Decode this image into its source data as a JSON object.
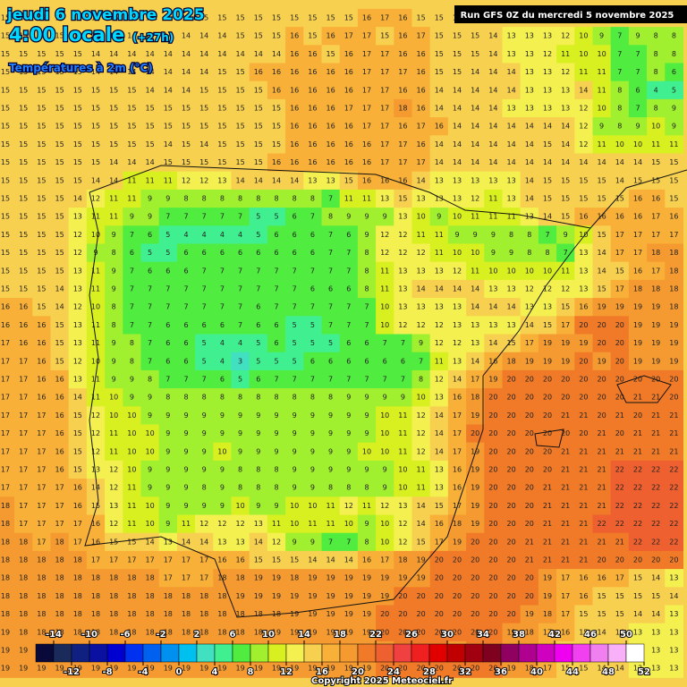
{
  "header": {
    "date": "jeudi 6 novembre 2025",
    "time": "4:00 locale",
    "offset": "(+27h)",
    "variable": "Températures à 2m (°C)",
    "run": "Run GFS 0Z du mercredi 5 novembre 2025"
  },
  "legend": {
    "top_labels": [
      -14,
      -10,
      -6,
      -2,
      2,
      6,
      10,
      14,
      18,
      22,
      26,
      30,
      34,
      38,
      42,
      46,
      50
    ],
    "bottom_labels": [
      -12,
      -8,
      -4,
      0,
      4,
      8,
      12,
      16,
      20,
      24,
      28,
      32,
      36,
      40,
      44,
      48,
      52
    ],
    "colors": [
      "#0a0a3a",
      "#1a2a5a",
      "#102080",
      "#0a10a0",
      "#0000d0",
      "#0030f0",
      "#0060f0",
      "#0090f0",
      "#00c0f0",
      "#40e0c0",
      "#40f090",
      "#50ec40",
      "#a0f030",
      "#d8f020",
      "#f4f050",
      "#f8d050",
      "#f8b038",
      "#f59a30",
      "#f07a28",
      "#ee6030",
      "#f04040",
      "#f02020",
      "#e00000",
      "#c00000",
      "#a00010",
      "#800020",
      "#900060",
      "#b00090",
      "#d000c0",
      "#f000f0",
      "#f040f0",
      "#f080f0",
      "#f8b0f8",
      "#ffffff"
    ]
  },
  "grid": {
    "rows": [
      [
        15,
        15,
        15,
        15,
        15,
        15,
        15,
        15,
        15,
        15,
        15,
        15,
        15,
        15,
        15,
        15,
        15,
        15,
        15,
        15,
        16,
        17,
        16,
        15,
        15,
        15,
        15,
        15,
        15,
        15,
        15,
        15,
        15,
        15,
        15,
        15,
        15,
        15
      ],
      [
        15,
        15,
        15,
        15,
        15,
        14,
        14,
        14,
        14,
        14,
        14,
        14,
        14,
        15,
        15,
        15,
        16,
        15,
        16,
        17,
        17,
        15,
        16,
        17,
        15,
        15,
        15,
        14,
        13,
        13,
        13,
        12,
        10,
        9,
        7,
        9,
        8,
        8
      ],
      [
        15,
        15,
        15,
        15,
        15,
        14,
        14,
        14,
        14,
        14,
        14,
        14,
        14,
        14,
        14,
        14,
        16,
        16,
        15,
        16,
        17,
        17,
        16,
        16,
        15,
        15,
        15,
        14,
        13,
        13,
        12,
        11,
        10,
        10,
        7,
        7,
        8,
        8
      ],
      [
        15,
        15,
        15,
        15,
        15,
        14,
        14,
        14,
        14,
        14,
        14,
        14,
        15,
        15,
        16,
        16,
        16,
        16,
        16,
        16,
        17,
        17,
        17,
        16,
        15,
        15,
        14,
        14,
        14,
        13,
        13,
        12,
        11,
        11,
        7,
        7,
        8,
        6
      ],
      [
        15,
        15,
        15,
        15,
        15,
        15,
        15,
        15,
        14,
        14,
        14,
        15,
        15,
        15,
        15,
        16,
        16,
        16,
        16,
        16,
        17,
        17,
        16,
        16,
        14,
        14,
        14,
        14,
        14,
        13,
        13,
        13,
        14,
        11,
        8,
        6,
        4,
        5
      ],
      [
        15,
        15,
        15,
        15,
        15,
        15,
        15,
        15,
        15,
        15,
        15,
        15,
        15,
        15,
        15,
        15,
        16,
        16,
        16,
        17,
        17,
        17,
        18,
        16,
        14,
        14,
        14,
        14,
        13,
        13,
        13,
        13,
        12,
        10,
        8,
        7,
        8,
        9
      ],
      [
        15,
        15,
        15,
        15,
        15,
        15,
        15,
        15,
        15,
        15,
        15,
        15,
        15,
        15,
        15,
        15,
        16,
        16,
        16,
        16,
        17,
        17,
        16,
        17,
        16,
        14,
        14,
        14,
        14,
        14,
        14,
        14,
        12,
        9,
        8,
        9,
        10,
        9
      ],
      [
        15,
        15,
        15,
        15,
        15,
        15,
        15,
        15,
        15,
        14,
        15,
        14,
        15,
        15,
        15,
        15,
        16,
        16,
        16,
        16,
        16,
        17,
        17,
        16,
        14,
        14,
        14,
        14,
        14,
        14,
        15,
        14,
        12,
        11,
        10,
        10,
        11,
        11
      ],
      [
        15,
        15,
        15,
        15,
        15,
        15,
        14,
        14,
        14,
        15,
        15,
        15,
        15,
        15,
        15,
        16,
        16,
        16,
        16,
        16,
        16,
        17,
        17,
        17,
        14,
        14,
        14,
        14,
        14,
        14,
        14,
        14,
        14,
        14,
        14,
        14,
        15,
        15
      ],
      [
        15,
        15,
        15,
        15,
        15,
        14,
        14,
        11,
        11,
        11,
        12,
        12,
        13,
        14,
        14,
        14,
        14,
        13,
        13,
        15,
        16,
        16,
        16,
        14,
        13,
        13,
        13,
        13,
        13,
        14,
        15,
        15,
        15,
        15,
        14,
        15,
        15,
        15
      ],
      [
        15,
        15,
        15,
        15,
        14,
        12,
        11,
        11,
        9,
        9,
        8,
        8,
        8,
        8,
        8,
        8,
        8,
        8,
        7,
        11,
        11,
        13,
        15,
        13,
        13,
        13,
        12,
        11,
        13,
        14,
        15,
        15,
        15,
        15,
        15,
        16,
        16,
        15
      ],
      [
        15,
        15,
        15,
        15,
        13,
        11,
        11,
        9,
        9,
        7,
        7,
        7,
        7,
        7,
        5,
        5,
        6,
        7,
        8,
        9,
        9,
        9,
        13,
        10,
        9,
        10,
        11,
        11,
        11,
        13,
        14,
        15,
        16,
        16,
        16,
        16,
        17,
        16
      ],
      [
        15,
        15,
        15,
        15,
        12,
        10,
        9,
        7,
        6,
        5,
        4,
        4,
        4,
        4,
        5,
        6,
        6,
        6,
        7,
        6,
        9,
        12,
        12,
        11,
        11,
        9,
        9,
        9,
        8,
        8,
        7,
        9,
        10,
        15,
        17,
        17,
        17,
        17
      ],
      [
        15,
        15,
        15,
        15,
        12,
        9,
        8,
        6,
        5,
        5,
        6,
        6,
        6,
        6,
        6,
        6,
        6,
        6,
        7,
        7,
        8,
        12,
        12,
        12,
        11,
        10,
        10,
        9,
        9,
        8,
        8,
        7,
        13,
        14,
        17,
        17,
        18,
        18
      ],
      [
        15,
        15,
        15,
        15,
        13,
        11,
        9,
        7,
        6,
        6,
        6,
        7,
        7,
        7,
        7,
        7,
        7,
        7,
        7,
        7,
        8,
        11,
        13,
        13,
        13,
        12,
        11,
        10,
        10,
        10,
        10,
        11,
        13,
        14,
        15,
        16,
        17,
        18
      ],
      [
        15,
        15,
        15,
        14,
        13,
        11,
        9,
        7,
        7,
        7,
        7,
        7,
        7,
        7,
        7,
        7,
        7,
        6,
        6,
        6,
        8,
        11,
        13,
        14,
        14,
        14,
        14,
        13,
        13,
        12,
        12,
        12,
        13,
        15,
        17,
        18,
        18,
        18
      ],
      [
        16,
        16,
        15,
        14,
        12,
        10,
        8,
        7,
        7,
        7,
        7,
        7,
        7,
        7,
        6,
        7,
        7,
        7,
        7,
        7,
        7,
        10,
        13,
        13,
        13,
        13,
        14,
        14,
        14,
        13,
        13,
        15,
        16,
        19,
        19,
        19,
        19,
        18
      ],
      [
        16,
        16,
        16,
        15,
        13,
        11,
        8,
        7,
        7,
        6,
        6,
        6,
        6,
        7,
        6,
        6,
        5,
        5,
        7,
        7,
        7,
        10,
        12,
        12,
        12,
        13,
        13,
        13,
        13,
        14,
        15,
        17,
        20,
        20,
        20,
        19,
        19,
        19
      ],
      [
        17,
        16,
        16,
        15,
        13,
        11,
        9,
        8,
        7,
        6,
        6,
        5,
        4,
        4,
        5,
        6,
        5,
        5,
        5,
        6,
        6,
        7,
        7,
        9,
        12,
        12,
        13,
        14,
        15,
        17,
        19,
        19,
        19,
        20,
        20,
        19,
        19,
        19
      ],
      [
        17,
        17,
        16,
        15,
        12,
        10,
        9,
        8,
        7,
        6,
        6,
        5,
        4,
        3,
        5,
        5,
        5,
        6,
        6,
        6,
        6,
        6,
        6,
        7,
        11,
        13,
        14,
        16,
        18,
        19,
        19,
        19,
        20,
        19,
        20,
        19,
        19,
        19
      ],
      [
        17,
        17,
        16,
        16,
        13,
        11,
        9,
        9,
        8,
        7,
        7,
        7,
        6,
        5,
        6,
        7,
        7,
        7,
        7,
        7,
        7,
        7,
        7,
        8,
        12,
        14,
        17,
        19,
        20,
        20,
        20,
        20,
        20,
        20,
        20,
        20,
        20,
        20
      ],
      [
        17,
        17,
        16,
        16,
        14,
        11,
        10,
        9,
        9,
        8,
        8,
        8,
        8,
        8,
        8,
        8,
        8,
        8,
        8,
        9,
        9,
        9,
        9,
        10,
        13,
        16,
        18,
        20,
        20,
        20,
        20,
        20,
        20,
        20,
        20,
        21,
        21,
        20
      ],
      [
        17,
        17,
        17,
        16,
        15,
        12,
        10,
        10,
        9,
        9,
        9,
        9,
        9,
        9,
        9,
        9,
        9,
        9,
        9,
        9,
        9,
        10,
        11,
        12,
        14,
        17,
        19,
        20,
        20,
        20,
        20,
        21,
        21,
        20,
        21,
        20,
        21,
        21
      ],
      [
        17,
        17,
        17,
        16,
        15,
        12,
        11,
        10,
        10,
        9,
        9,
        9,
        9,
        9,
        9,
        9,
        9,
        9,
        9,
        9,
        9,
        10,
        11,
        12,
        14,
        17,
        20,
        20,
        20,
        20,
        20,
        20,
        20,
        21,
        20,
        21,
        21,
        21
      ],
      [
        17,
        17,
        17,
        16,
        15,
        12,
        11,
        10,
        10,
        9,
        9,
        9,
        10,
        9,
        9,
        9,
        9,
        9,
        9,
        9,
        10,
        10,
        11,
        12,
        14,
        17,
        19,
        20,
        20,
        20,
        20,
        21,
        21,
        21,
        21,
        21,
        21,
        21
      ],
      [
        17,
        17,
        17,
        16,
        15,
        13,
        12,
        10,
        9,
        9,
        9,
        9,
        9,
        8,
        8,
        8,
        9,
        9,
        9,
        9,
        9,
        9,
        10,
        11,
        13,
        16,
        19,
        20,
        20,
        20,
        20,
        21,
        21,
        21,
        22,
        22,
        22,
        22
      ],
      [
        17,
        17,
        17,
        17,
        16,
        14,
        12,
        11,
        9,
        9,
        9,
        8,
        9,
        8,
        8,
        8,
        9,
        9,
        8,
        8,
        8,
        9,
        10,
        11,
        13,
        16,
        19,
        20,
        20,
        20,
        21,
        21,
        21,
        21,
        22,
        22,
        22,
        22
      ],
      [
        18,
        17,
        17,
        17,
        16,
        15,
        13,
        11,
        10,
        9,
        9,
        9,
        9,
        10,
        9,
        9,
        10,
        10,
        11,
        12,
        11,
        12,
        13,
        14,
        15,
        17,
        19,
        20,
        20,
        20,
        21,
        21,
        21,
        21,
        22,
        22,
        22,
        22
      ],
      [
        18,
        17,
        17,
        17,
        17,
        16,
        12,
        11,
        10,
        9,
        11,
        12,
        12,
        12,
        13,
        11,
        10,
        11,
        11,
        10,
        9,
        10,
        12,
        14,
        16,
        18,
        19,
        20,
        20,
        20,
        21,
        21,
        21,
        22,
        22,
        22,
        22,
        22
      ],
      [
        18,
        18,
        17,
        18,
        17,
        16,
        15,
        15,
        14,
        13,
        14,
        14,
        13,
        13,
        14,
        12,
        9,
        9,
        7,
        7,
        8,
        10,
        12,
        15,
        17,
        19,
        20,
        20,
        20,
        21,
        21,
        21,
        21,
        21,
        21,
        22,
        22,
        22
      ],
      [
        18,
        18,
        18,
        18,
        18,
        17,
        17,
        17,
        17,
        17,
        17,
        17,
        16,
        16,
        15,
        15,
        15,
        14,
        14,
        14,
        16,
        17,
        18,
        19,
        20,
        20,
        20,
        20,
        20,
        21,
        21,
        21,
        21,
        20,
        20,
        20,
        20,
        20
      ],
      [
        18,
        18,
        18,
        18,
        18,
        18,
        18,
        18,
        18,
        17,
        17,
        17,
        18,
        18,
        19,
        19,
        18,
        19,
        19,
        19,
        19,
        19,
        19,
        19,
        20,
        20,
        20,
        20,
        20,
        20,
        19,
        17,
        16,
        16,
        17,
        15,
        14,
        13
      ],
      [
        18,
        18,
        18,
        18,
        18,
        18,
        18,
        18,
        18,
        18,
        18,
        18,
        18,
        19,
        19,
        19,
        19,
        19,
        19,
        19,
        19,
        19,
        20,
        20,
        20,
        20,
        20,
        20,
        20,
        20,
        19,
        17,
        16,
        15,
        15,
        15,
        15,
        14
      ],
      [
        18,
        18,
        18,
        18,
        18,
        18,
        18,
        18,
        18,
        18,
        18,
        18,
        18,
        18,
        18,
        18,
        19,
        19,
        19,
        19,
        19,
        20,
        20,
        20,
        20,
        20,
        20,
        20,
        20,
        19,
        18,
        17,
        15,
        15,
        15,
        14,
        14,
        13
      ],
      [
        19,
        18,
        18,
        18,
        18,
        18,
        18,
        18,
        18,
        18,
        18,
        18,
        18,
        18,
        18,
        19,
        19,
        19,
        19,
        19,
        19,
        20,
        20,
        20,
        20,
        20,
        20,
        20,
        19,
        18,
        17,
        16,
        15,
        14,
        14,
        13,
        13,
        13
      ],
      [
        19,
        19,
        19,
        19,
        19,
        19,
        19,
        19,
        19,
        19,
        19,
        19,
        19,
        19,
        19,
        19,
        19,
        19,
        19,
        19,
        19,
        19,
        20,
        20,
        20,
        19,
        20,
        20,
        19,
        18,
        17,
        15,
        15,
        14,
        14,
        13,
        13,
        13
      ],
      [
        19,
        19,
        19,
        19,
        19,
        19,
        19,
        19,
        19,
        19,
        19,
        19,
        19,
        19,
        19,
        19,
        19,
        19,
        19,
        19,
        19,
        20,
        20,
        20,
        20,
        20,
        20,
        20,
        19,
        18,
        17,
        15,
        15,
        14,
        14,
        13,
        13,
        13
      ]
    ]
  },
  "footer": {
    "copyright": "Copyright 2025 Meteociel.fr"
  }
}
